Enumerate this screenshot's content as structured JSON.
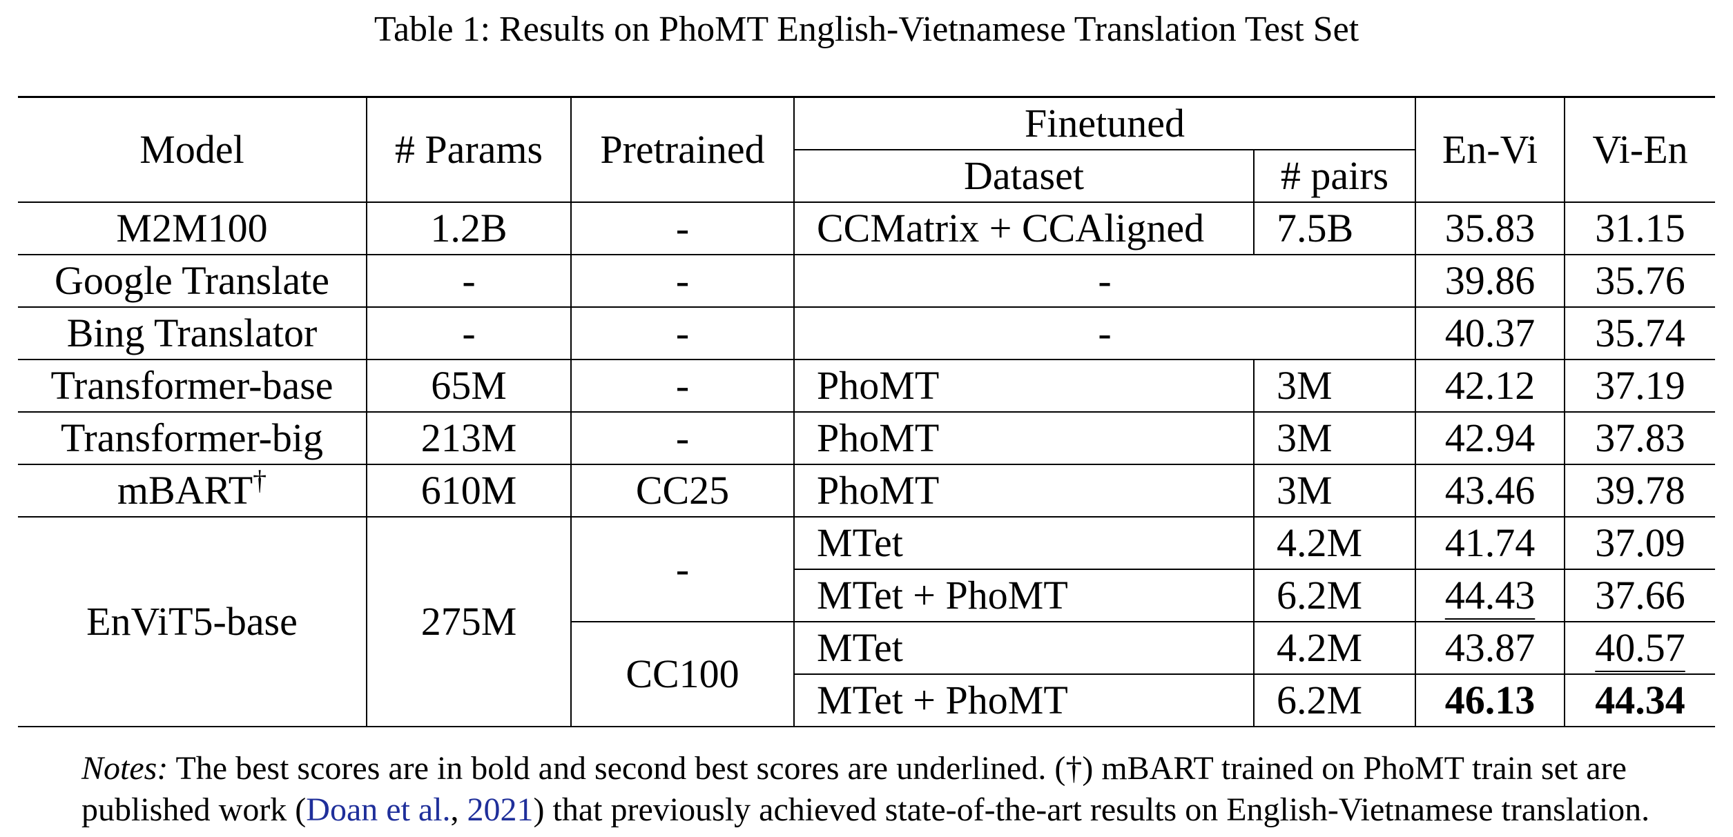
{
  "caption": "Table 1: Results on PhoMT English-Vietnamese Translation Test Set",
  "headers": {
    "model": "Model",
    "params": "# Params",
    "pretrained": "Pretrained",
    "finetuned": "Finetuned",
    "dataset": "Dataset",
    "pairs": "# pairs",
    "en_vi": "En-Vi",
    "vi_en": "Vi-En"
  },
  "rows": [
    {
      "model": "M2M100",
      "params": "1.2B",
      "pretrained": "-",
      "dataset": "CCMatrix + CCAligned",
      "pairs": "7.5B",
      "en_vi": "35.83",
      "vi_en": "31.15"
    },
    {
      "model": "Google Translate",
      "params": "-",
      "pretrained": "-",
      "finetuned": "-",
      "en_vi": "39.86",
      "vi_en": "35.76"
    },
    {
      "model": "Bing Translator",
      "params": "-",
      "pretrained": "-",
      "finetuned": "-",
      "en_vi": "40.37",
      "vi_en": "35.74"
    },
    {
      "model": "Transformer-base",
      "params": "65M",
      "pretrained": "-",
      "dataset": "PhoMT",
      "pairs": "3M",
      "en_vi": "42.12",
      "vi_en": "37.19"
    },
    {
      "model": "Transformer-big",
      "params": "213M",
      "pretrained": "-",
      "dataset": "PhoMT",
      "pairs": "3M",
      "en_vi": "42.94",
      "vi_en": "37.83"
    },
    {
      "model": "mBART",
      "model_mark": "†",
      "params": "610M",
      "pretrained": "CC25",
      "dataset": "PhoMT",
      "pairs": "3M",
      "en_vi": "43.46",
      "vi_en": "39.78"
    }
  ],
  "envit5": {
    "model": "EnViT5-base",
    "params": "275M",
    "groups": [
      {
        "pretrained": "-",
        "rows": [
          {
            "dataset": "MTet",
            "pairs": "4.2M",
            "en_vi": "41.74",
            "vi_en": "37.09"
          },
          {
            "dataset": "MTet + PhoMT",
            "pairs": "6.2M",
            "en_vi": "44.43",
            "vi_en": "37.66"
          }
        ]
      },
      {
        "pretrained": "CC100",
        "rows": [
          {
            "dataset": "MTet",
            "pairs": "4.2M",
            "en_vi": "43.87",
            "vi_en": "40.57"
          },
          {
            "dataset": "MTet + PhoMT",
            "pairs": "6.2M",
            "en_vi": "46.13",
            "vi_en": "44.34"
          }
        ]
      }
    ]
  },
  "notes": {
    "label": "Notes:",
    "text_1": "The best scores are in bold and second best scores are underlined. (†) mBART trained on PhoMT train set are",
    "text_2_before": "published work (",
    "cite_author": "Doan et al.",
    "cite_sep": ", ",
    "cite_year": "2021",
    "text_2_after": ") that previously achieved state-of-the-art results on English-Vietnamese translation."
  }
}
